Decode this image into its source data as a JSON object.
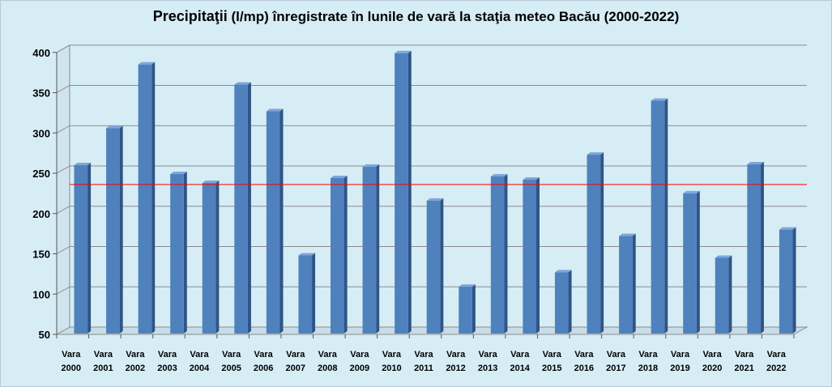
{
  "chart_data": {
    "type": "bar",
    "title_main": "Precipitaţii",
    "title_rest": " (l/mp)  înregistrate în lunile de vară la staţia meteo Bacău (2000-2022)",
    "xlabel": "",
    "ylabel": "",
    "ylim": [
      50,
      400
    ],
    "yticks": [
      50,
      100,
      150,
      200,
      250,
      300,
      350,
      400
    ],
    "grid": true,
    "legend": "none",
    "categories": [
      [
        "Vara",
        "2000"
      ],
      [
        "Vara",
        "2001"
      ],
      [
        "Vara",
        "2002"
      ],
      [
        "Vara",
        "2003"
      ],
      [
        "Vara",
        "2004"
      ],
      [
        "Vara",
        "2005"
      ],
      [
        "Vara",
        "2006"
      ],
      [
        "Vara",
        "2007"
      ],
      [
        "Vara",
        "2008"
      ],
      [
        "Vara",
        "2009"
      ],
      [
        "Vara",
        "2010"
      ],
      [
        "Vara",
        "2011"
      ],
      [
        "Vara",
        "2012"
      ],
      [
        "Vara",
        "2013"
      ],
      [
        "Vara",
        "2014"
      ],
      [
        "Vara",
        "2015"
      ],
      [
        "Vara",
        "2016"
      ],
      [
        "Vara",
        "2017"
      ],
      [
        "Vara",
        "2018"
      ],
      [
        "Vara",
        "2019"
      ],
      [
        "Vara",
        "2020"
      ],
      [
        "Vara",
        "2021"
      ],
      [
        "Vara",
        "2022"
      ]
    ],
    "values": [
      260,
      306,
      385,
      249,
      238,
      360,
      327,
      148,
      244,
      258,
      399,
      216,
      109,
      246,
      242,
      127,
      273,
      172,
      340,
      225,
      145,
      261,
      180
    ],
    "reference_line": 236,
    "colors": {
      "bar_front": "#4f81bd",
      "bar_side": "#2f5486",
      "bar_top": "#7ea6d8",
      "reference_line": "#ff0000",
      "grid": "#8c8c8c",
      "plot_background": "#d6edf6"
    }
  }
}
